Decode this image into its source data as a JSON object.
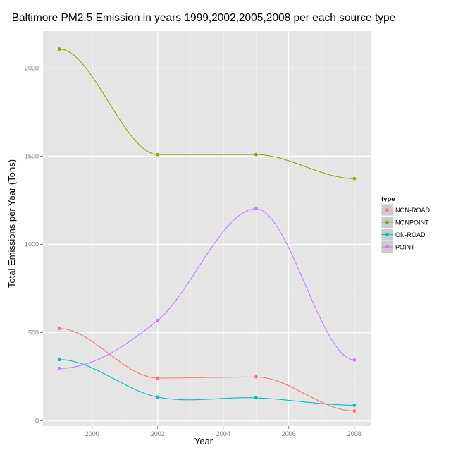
{
  "chart_data": {
    "type": "line",
    "title": "Baltimore PM2.5 Emission in years 1999,2002,2005,2008 per each source type",
    "xlabel": "Year",
    "ylabel": "Total Emissions per Year (Tons)",
    "x": [
      1999,
      2002,
      2005,
      2008
    ],
    "xlim": [
      1998.5,
      2008.5
    ],
    "ylim": [
      -30,
      2210
    ],
    "x_ticks": [
      2000,
      2002,
      2004,
      2006,
      2008
    ],
    "y_ticks": [
      0,
      500,
      1000,
      1500,
      2000
    ],
    "x_tick_labels": [
      "2000",
      "2002",
      "2004",
      "2006",
      "2008"
    ],
    "y_tick_labels": [
      "0",
      "500",
      "1000",
      "1500",
      "2000"
    ],
    "grid": true,
    "smoothed": true,
    "legend": {
      "title": "type",
      "placement": "right"
    },
    "series": [
      {
        "name": "NON-ROAD",
        "color": "#F8766D",
        "values": [
          522.9,
          242.0,
          248.9,
          55.8
        ]
      },
      {
        "name": "NONPOINT",
        "color": "#7CAE00",
        "values": [
          2107.6,
          1509.5,
          1509.5,
          1373.2
        ]
      },
      {
        "name": "ON-ROAD",
        "color": "#00BFC4",
        "values": [
          346.8,
          134.3,
          130.4,
          88.3
        ]
      },
      {
        "name": "POINT",
        "color": "#C77CFF",
        "values": [
          296.8,
          569.3,
          1202.5,
          344.98
        ]
      }
    ]
  },
  "colors": {
    "panel_background": "#E5E5E5",
    "grid_major": "#FFFFFF",
    "grid_minor": "#F2F2F2",
    "tick_text": "#7F7F7F",
    "legend_key_background": "#CCCCCC"
  }
}
